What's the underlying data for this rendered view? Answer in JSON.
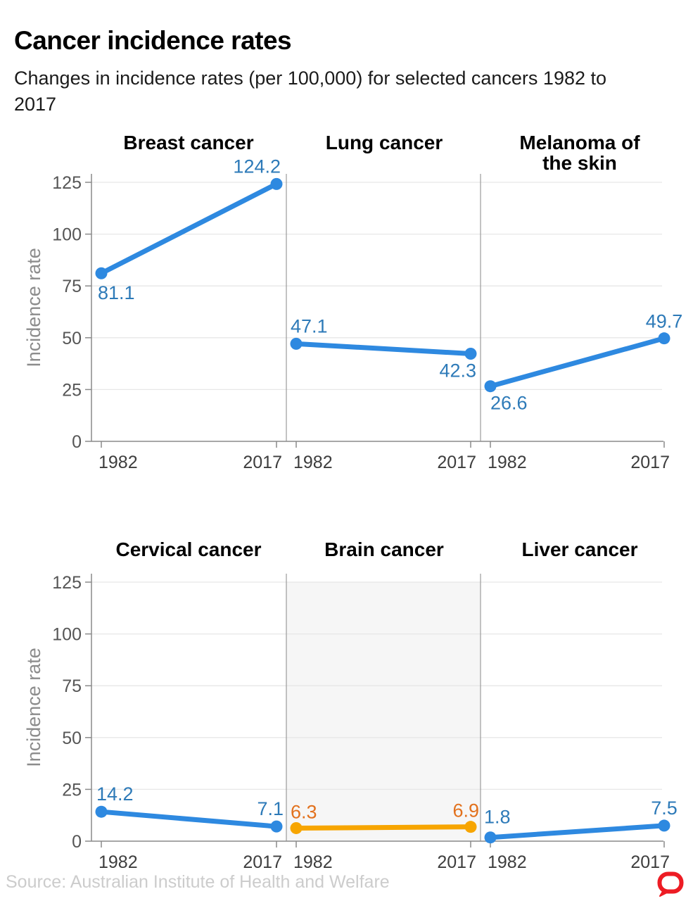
{
  "header": {
    "title": "Cancer incidence rates",
    "subtitle": "Changes in incidence rates (per 100,000) for selected cancers 1982 to 2017"
  },
  "footer": {
    "source": "Source: Australian Institute of Health and Welfare"
  },
  "logo": {
    "label": "The Conversation logo",
    "color": "#ed1c24"
  },
  "chart_data": {
    "type": "line",
    "title": "Cancer incidence rates",
    "subtitle": "Changes in incidence rates (per 100,000) for selected cancers 1982 to 2017",
    "unit": "per 100,000",
    "x": [
      1982,
      2017
    ],
    "x_categories": [
      "1982",
      "2017"
    ],
    "ylabel": "Incidence rate",
    "ylim": [
      0,
      125
    ],
    "yticks": [
      0,
      25,
      50,
      75,
      100,
      125
    ],
    "ytick_labels": [
      "0",
      "25",
      "50",
      "75",
      "100",
      "125"
    ],
    "grid": true,
    "legend": "none",
    "rows": [
      {
        "panels": [
          {
            "title": "Breast cancer",
            "title_lines": [
              "Breast cancer"
            ],
            "series_color": "blue",
            "highlight": false,
            "values": [
              81.1,
              124.2
            ],
            "point_labels": [
              "81.1",
              "124.2"
            ]
          },
          {
            "title": "Lung cancer",
            "title_lines": [
              "Lung cancer"
            ],
            "series_color": "blue",
            "highlight": false,
            "values": [
              47.1,
              42.3
            ],
            "point_labels": [
              "47.1",
              "42.3"
            ]
          },
          {
            "title": "Melanoma of the skin",
            "title_lines": [
              "Melanoma of",
              "the skin"
            ],
            "series_color": "blue",
            "highlight": false,
            "values": [
              26.6,
              49.7
            ],
            "point_labels": [
              "26.6",
              "49.7"
            ]
          }
        ]
      },
      {
        "panels": [
          {
            "title": "Cervical cancer",
            "title_lines": [
              "Cervical cancer"
            ],
            "series_color": "blue",
            "highlight": false,
            "values": [
              14.2,
              7.1
            ],
            "point_labels": [
              "14.2",
              "7.1"
            ]
          },
          {
            "title": "Brain cancer",
            "title_lines": [
              "Brain cancer"
            ],
            "series_color": "orange",
            "highlight": true,
            "values": [
              6.3,
              6.9
            ],
            "point_labels": [
              "6.3",
              "6.9"
            ]
          },
          {
            "title": "Liver cancer",
            "title_lines": [
              "Liver cancer"
            ],
            "series_color": "blue",
            "highlight": false,
            "values": [
              1.8,
              7.5
            ],
            "point_labels": [
              "1.8",
              "7.5"
            ]
          }
        ]
      }
    ]
  },
  "colors": {
    "blue_line": "#2e89e0",
    "blue_label": "#2d7ab8",
    "orange_line": "#f7a500",
    "orange_label": "#e2711d",
    "grid": "#e7e7e7",
    "axis": "#8a8a8a",
    "separator": "#9b9b9b",
    "highlight_band": "#f6f6f6",
    "x_tick_label": "#3d3d3d",
    "y_tick_label": "#565656",
    "axis_title": "#8c8c8c",
    "panel_title": "#000000",
    "source": "#cccccc",
    "logo_red": "#ed1c24"
  }
}
